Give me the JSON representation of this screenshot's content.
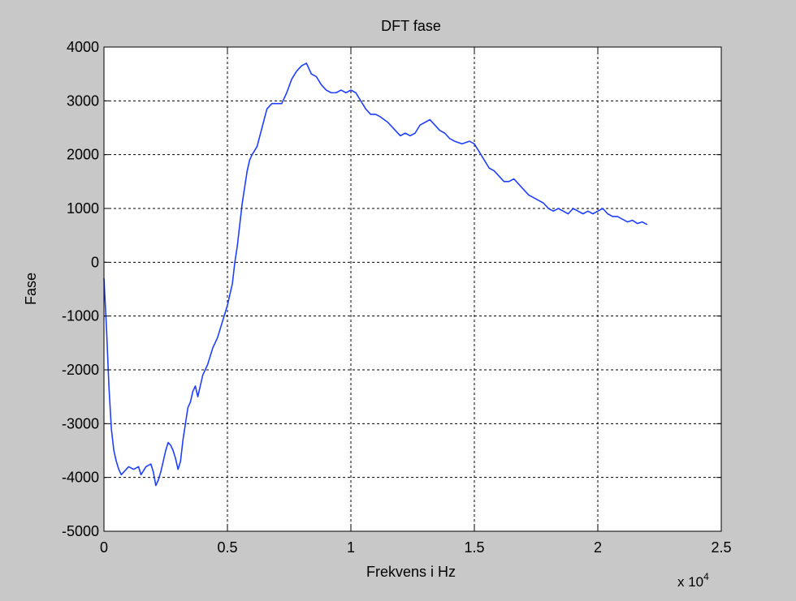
{
  "chart_data": {
    "type": "line",
    "title": "DFT fase",
    "xlabel": "Frekvens i Hz",
    "ylabel": "Fase",
    "x_multiplier_label": {
      "base": "x 10",
      "exponent": "4"
    },
    "xlim": [
      0,
      2.5
    ],
    "ylim": [
      -5000,
      4000
    ],
    "xticks": [
      0,
      0.5,
      1,
      1.5,
      2,
      2.5
    ],
    "xtick_labels": [
      "0",
      "0.5",
      "1",
      "1.5",
      "2",
      "2.5"
    ],
    "yticks": [
      -5000,
      -4000,
      -3000,
      -2000,
      -1000,
      0,
      1000,
      2000,
      3000,
      4000
    ],
    "ytick_labels": [
      "-5000",
      "-4000",
      "-3000",
      "-2000",
      "-1000",
      "0",
      "1000",
      "2000",
      "3000",
      "4000"
    ],
    "grid": true,
    "line_color": "#1f3fff",
    "series": [
      {
        "x": [
          0,
          0.01,
          0.02,
          0.03,
          0.04,
          0.05,
          0.06,
          0.07,
          0.08,
          0.1,
          0.12,
          0.14,
          0.15,
          0.17,
          0.19,
          0.2,
          0.21,
          0.22,
          0.23,
          0.24,
          0.25,
          0.26,
          0.27,
          0.28,
          0.29,
          0.3,
          0.31,
          0.32,
          0.33,
          0.34,
          0.35,
          0.36,
          0.37,
          0.38,
          0.39,
          0.4,
          0.42,
          0.44,
          0.46,
          0.48,
          0.5,
          0.52,
          0.53,
          0.54,
          0.55,
          0.56,
          0.57,
          0.58,
          0.59,
          0.6,
          0.62,
          0.64,
          0.66,
          0.68,
          0.7,
          0.72,
          0.74,
          0.76,
          0.78,
          0.8,
          0.82,
          0.84,
          0.86,
          0.88,
          0.9,
          0.92,
          0.94,
          0.96,
          0.98,
          1.0,
          1.02,
          1.04,
          1.06,
          1.08,
          1.1,
          1.12,
          1.15,
          1.18,
          1.2,
          1.22,
          1.24,
          1.26,
          1.28,
          1.3,
          1.32,
          1.34,
          1.36,
          1.38,
          1.4,
          1.42,
          1.45,
          1.48,
          1.5,
          1.52,
          1.54,
          1.56,
          1.58,
          1.6,
          1.62,
          1.64,
          1.66,
          1.68,
          1.7,
          1.72,
          1.74,
          1.76,
          1.78,
          1.8,
          1.82,
          1.84,
          1.86,
          1.88,
          1.9,
          1.92,
          1.94,
          1.96,
          1.98,
          2.0,
          2.02,
          2.04,
          2.06,
          2.08,
          2.1,
          2.12,
          2.14,
          2.16,
          2.18,
          2.2
        ],
        "y": [
          -300,
          -1200,
          -2300,
          -3100,
          -3500,
          -3700,
          -3850,
          -3950,
          -3900,
          -3800,
          -3850,
          -3800,
          -3950,
          -3800,
          -3750,
          -3900,
          -4150,
          -4050,
          -3900,
          -3700,
          -3500,
          -3350,
          -3400,
          -3500,
          -3650,
          -3850,
          -3700,
          -3300,
          -3000,
          -2700,
          -2600,
          -2400,
          -2300,
          -2500,
          -2300,
          -2100,
          -1900,
          -1600,
          -1400,
          -1100,
          -800,
          -400,
          0,
          300,
          700,
          1100,
          1400,
          1700,
          1900,
          2000,
          2150,
          2500,
          2850,
          2950,
          2950,
          2950,
          3150,
          3400,
          3550,
          3650,
          3700,
          3500,
          3450,
          3300,
          3200,
          3150,
          3150,
          3200,
          3150,
          3200,
          3150,
          3000,
          2850,
          2750,
          2750,
          2700,
          2600,
          2450,
          2350,
          2400,
          2350,
          2400,
          2550,
          2600,
          2650,
          2550,
          2450,
          2400,
          2300,
          2250,
          2200,
          2250,
          2200,
          2050,
          1900,
          1750,
          1700,
          1600,
          1500,
          1500,
          1550,
          1450,
          1350,
          1250,
          1200,
          1150,
          1100,
          1000,
          950,
          1000,
          950,
          900,
          1000,
          950,
          900,
          950,
          900,
          950,
          1000,
          900,
          850,
          850,
          800,
          750,
          780,
          720,
          750,
          700
        ]
      }
    ]
  }
}
